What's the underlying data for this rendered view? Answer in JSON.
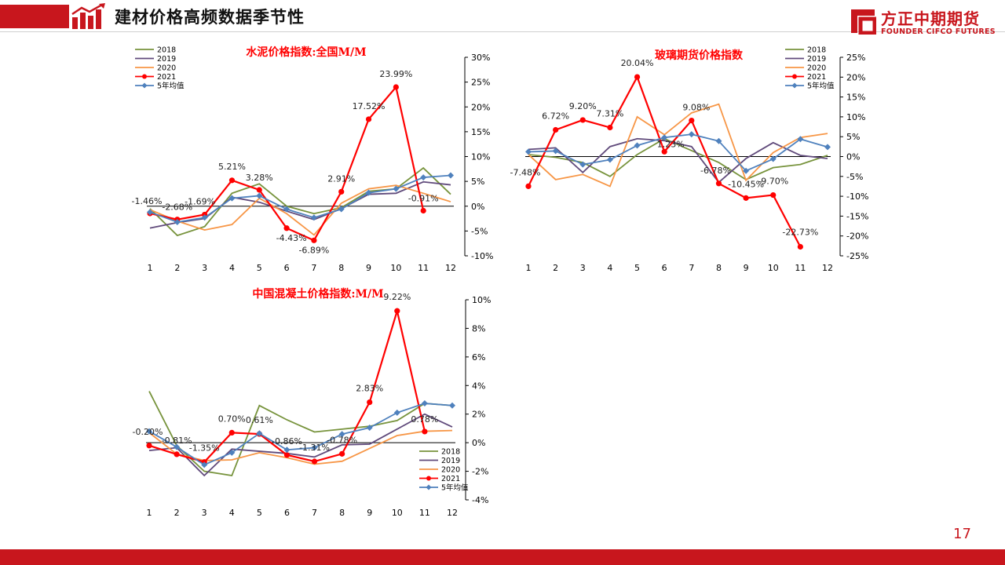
{
  "header": {
    "title": "建材价格高频数据季节性",
    "logo_cn": "方正中期期货",
    "logo_en": "FOUNDER CIFCO FUTURES"
  },
  "page_number": "17",
  "colors": {
    "brand_red": "#c8161d",
    "s2018": "#77933c",
    "s2019": "#604a7b",
    "s2020": "#f79646",
    "s2021": "#ff0000",
    "s5yr": "#4f81bd"
  },
  "chart_data": [
    {
      "type": "line",
      "title": "水泥价格指数:全国M/M",
      "categories": [
        "1",
        "2",
        "3",
        "4",
        "5",
        "6",
        "7",
        "8",
        "9",
        "10",
        "11",
        "12"
      ],
      "ylim": [
        -10,
        30
      ],
      "yticks": [
        -10,
        -5,
        0,
        5,
        10,
        15,
        20,
        25,
        30
      ],
      "ytick_labels": [
        "-10%",
        "-5%",
        "0%",
        "5%",
        "10%",
        "15%",
        "20%",
        "25%",
        "30%"
      ],
      "legend_position": "top-left",
      "grid": false,
      "series": [
        {
          "name": "2018",
          "values": [
            -0.5,
            -5.9,
            -4.1,
            2.6,
            4.5,
            0.0,
            -1.5,
            -0.3,
            3.0,
            3.5,
            7.7,
            2.4
          ]
        },
        {
          "name": "2019",
          "values": [
            -4.4,
            -3.3,
            -2.5,
            1.8,
            0.8,
            -1.0,
            -2.7,
            -0.5,
            2.4,
            2.6,
            4.9,
            4.3
          ]
        },
        {
          "name": "2020",
          "values": [
            -0.7,
            -3.0,
            -4.8,
            -3.7,
            1.6,
            -1.5,
            -5.8,
            0.6,
            3.5,
            4.2,
            2.6,
            0.9
          ]
        },
        {
          "name": "2021",
          "values": [
            -1.46,
            -2.68,
            -1.69,
            5.21,
            3.28,
            -4.43,
            -6.89,
            2.91,
            17.52,
            23.99,
            -0.91,
            null
          ]
        },
        {
          "name": "5年均值",
          "values": [
            -1.2,
            -3.2,
            -2.3,
            1.6,
            2.1,
            -0.6,
            -2.3,
            -0.6,
            2.7,
            3.5,
            5.8,
            6.2
          ]
        }
      ],
      "data_labels": [
        "-1.46%",
        "-2.68%",
        "-1.69%",
        "5.21%",
        "3.28%",
        "-4.43%",
        "-6.89%",
        "2.91%",
        "17.52%",
        "23.99%",
        "-0.91%"
      ]
    },
    {
      "type": "line",
      "title": "玻璃期货价格指数",
      "categories": [
        "1",
        "2",
        "3",
        "4",
        "5",
        "6",
        "7",
        "8",
        "9",
        "10",
        "11",
        "12"
      ],
      "ylim": [
        -25,
        25
      ],
      "yticks": [
        -25,
        -20,
        -15,
        -10,
        -5,
        0,
        5,
        10,
        15,
        20,
        25
      ],
      "ytick_labels": [
        "-25%",
        "-20%",
        "-15%",
        "-10%",
        "-5%",
        "0%",
        "5%",
        "10%",
        "15%",
        "20%",
        "25%"
      ],
      "legend_position": "top-right",
      "grid": false,
      "series": [
        {
          "name": "2018",
          "values": [
            0.5,
            -0.2,
            -1.5,
            -5.0,
            0.5,
            4.5,
            1.5,
            -1.5,
            -5.8,
            -2.8,
            -2.0,
            0.3
          ]
        },
        {
          "name": "2019",
          "values": [
            1.8,
            2.2,
            -4.0,
            2.5,
            4.5,
            4.0,
            2.5,
            -6.5,
            -0.5,
            3.5,
            0.3,
            -0.5
          ]
        },
        {
          "name": "2020",
          "values": [
            0.5,
            -5.8,
            -4.5,
            -7.5,
            10.0,
            5.5,
            11.0,
            13.2,
            -6.0,
            1.0,
            4.8,
            5.8
          ]
        },
        {
          "name": "2021",
          "values": [
            -7.48,
            6.72,
            9.2,
            7.31,
            20.04,
            1.23,
            9.08,
            -6.78,
            -10.45,
            -9.7,
            -22.73,
            null
          ]
        },
        {
          "name": "5年均值",
          "values": [
            1.2,
            1.4,
            -2.0,
            -0.8,
            2.8,
            4.8,
            5.6,
            3.9,
            -3.6,
            -0.6,
            4.4,
            2.4
          ]
        }
      ],
      "data_labels": [
        "-7.48%",
        "6.72%",
        "9.20%",
        "7.31%",
        "20.04%",
        "1.23%",
        "9.08%",
        "-6.78%",
        "-10.45%",
        "-9.70%",
        "-22.73%"
      ]
    },
    {
      "type": "line",
      "title": "中国混凝土价格指数:M/M",
      "categories": [
        "1",
        "2",
        "3",
        "4",
        "5",
        "6",
        "7",
        "8",
        "9",
        "10",
        "11",
        "12"
      ],
      "ylim": [
        -4,
        10
      ],
      "yticks": [
        -4,
        -2,
        0,
        2,
        4,
        6,
        8,
        10
      ],
      "ytick_labels": [
        "-4%",
        "-2%",
        "0%",
        "2%",
        "4%",
        "6%",
        "8%",
        "10%"
      ],
      "legend_position": "bottom-right",
      "grid": false,
      "series": [
        {
          "name": "2018",
          "values": [
            3.6,
            -0.2,
            -2.0,
            -2.3,
            2.6,
            1.6,
            0.75,
            0.95,
            1.15,
            1.55,
            2.75,
            2.6
          ]
        },
        {
          "name": "2019",
          "values": [
            -0.55,
            -0.35,
            -2.3,
            -0.45,
            -0.6,
            -0.75,
            -1.0,
            -0.15,
            -0.1,
            0.95,
            2.0,
            1.1
          ]
        },
        {
          "name": "2020",
          "values": [
            0.7,
            -0.8,
            -1.25,
            -1.2,
            -0.7,
            -1.05,
            -1.5,
            -1.3,
            -0.4,
            0.5,
            0.8,
            0.85
          ]
        },
        {
          "name": "2021",
          "values": [
            -0.2,
            -0.81,
            -1.35,
            0.7,
            0.61,
            -0.86,
            -1.31,
            -0.78,
            2.83,
            9.22,
            0.78,
            null
          ]
        },
        {
          "name": "5年均值",
          "values": [
            0.8,
            -0.3,
            -1.55,
            -0.7,
            0.65,
            -0.5,
            -0.35,
            0.6,
            1.05,
            2.1,
            2.75,
            2.6
          ]
        }
      ],
      "data_labels": [
        "-0.20%",
        "-0.81%",
        "-1.35%",
        "0.70%",
        "0.61%",
        "-0.86%",
        "-1.31%",
        "-0.78%",
        "2.83%",
        "9.22%",
        "0.78%"
      ]
    }
  ]
}
